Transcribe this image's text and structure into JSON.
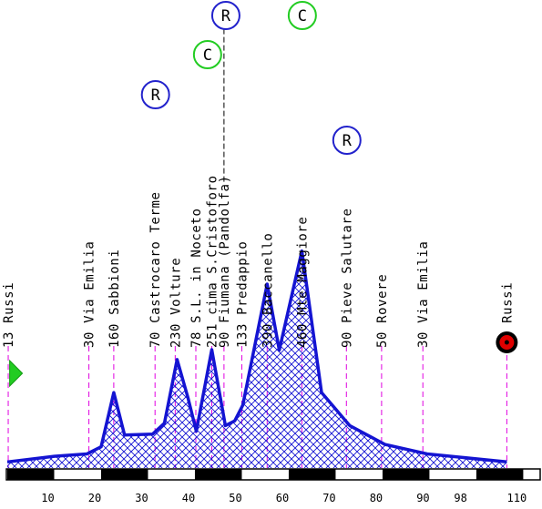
{
  "colors": {
    "profile_stroke": "#1414d2",
    "fill_pattern": "#1414d2",
    "guide_line": "#e000e0",
    "leader_line": "#000000",
    "climb_badge_C": "#22cc22",
    "climb_badge_R": "#2222cc",
    "start_marker": "#22cc22",
    "finish_marker_outer": "#000000",
    "finish_marker_inner": "#e00000",
    "axis_black": "#000000",
    "text": "#000000"
  },
  "x_axis": {
    "min": 0,
    "max": 114,
    "ticks": [
      {
        "value": 10,
        "label": "10"
      },
      {
        "value": 20,
        "label": "20"
      },
      {
        "value": 30,
        "label": "30"
      },
      {
        "value": 40,
        "label": "40"
      },
      {
        "value": 50,
        "label": "50"
      },
      {
        "value": 60,
        "label": "60"
      },
      {
        "value": 70,
        "label": "70"
      },
      {
        "value": 80,
        "label": "80"
      },
      {
        "value": 90,
        "label": "90"
      },
      {
        "value": 98,
        "label": "98"
      },
      {
        "value": 110,
        "label": "110"
      }
    ]
  },
  "elevation_max": 500,
  "profile": [
    {
      "km": 0,
      "alt": 13
    },
    {
      "km": 10,
      "alt": 25
    },
    {
      "km": 17,
      "alt": 30
    },
    {
      "km": 20,
      "alt": 45
    },
    {
      "km": 22.7,
      "alt": 160
    },
    {
      "km": 25,
      "alt": 70
    },
    {
      "km": 31,
      "alt": 72
    },
    {
      "km": 33.5,
      "alt": 95
    },
    {
      "km": 36.2,
      "alt": 230
    },
    {
      "km": 38.5,
      "alt": 150
    },
    {
      "km": 40.3,
      "alt": 78
    },
    {
      "km": 43.6,
      "alt": 251
    },
    {
      "km": 46.5,
      "alt": 90
    },
    {
      "km": 48.5,
      "alt": 100
    },
    {
      "km": 50.2,
      "alt": 133
    },
    {
      "km": 55.4,
      "alt": 390
    },
    {
      "km": 58,
      "alt": 250
    },
    {
      "km": 62.8,
      "alt": 460
    },
    {
      "km": 67,
      "alt": 160
    },
    {
      "km": 73,
      "alt": 90
    },
    {
      "km": 80.5,
      "alt": 50
    },
    {
      "km": 89.5,
      "alt": 30
    },
    {
      "km": 106.5,
      "alt": 13
    }
  ],
  "waypoints": [
    {
      "km": 0.2,
      "label": "13 Russi",
      "leader": false
    },
    {
      "km": 17.4,
      "label": "30 Via Emilia",
      "leader": false
    },
    {
      "km": 22.7,
      "label": "160 Sabbioni",
      "leader": false
    },
    {
      "km": 31.5,
      "label": "70 Castrocaro Terme",
      "leader": false
    },
    {
      "km": 35.8,
      "label": "230 Volture",
      "leader": false
    },
    {
      "km": 40.2,
      "label": "78 S.L. in Noceto",
      "leader": false
    },
    {
      "km": 43.6,
      "label": "251 cima S.Cristoforo",
      "leader": false
    },
    {
      "km": 46.2,
      "label": "90 Fiumana (Pandolfa)",
      "leader": true
    },
    {
      "km": 50.0,
      "label": "133 Predappio",
      "leader": false
    },
    {
      "km": 55.4,
      "label": "390 Baccanello",
      "leader": false
    },
    {
      "km": 62.8,
      "label": "460 Mte Maggiore",
      "leader": false
    },
    {
      "km": 72.3,
      "label": "90 Pieve Salutare",
      "leader": false
    },
    {
      "km": 79.8,
      "label": "50 Rovere",
      "leader": false
    },
    {
      "km": 88.6,
      "label": "30 Via Emilia",
      "leader": false
    },
    {
      "km": 106.5,
      "label": "13 Russi",
      "leader": false
    }
  ],
  "climb_badges": [
    {
      "letter": "R",
      "km": 31.5
    },
    {
      "letter": "C",
      "km": 42.6
    },
    {
      "letter": "R",
      "km": 46.5
    },
    {
      "letter": "C",
      "km": 62.8
    },
    {
      "letter": "R",
      "km": 72.3
    }
  ],
  "start_marker": {
    "km": 0.5,
    "shape": "triangle"
  },
  "finish_marker": {
    "km": 106.5,
    "shape": "circle"
  }
}
